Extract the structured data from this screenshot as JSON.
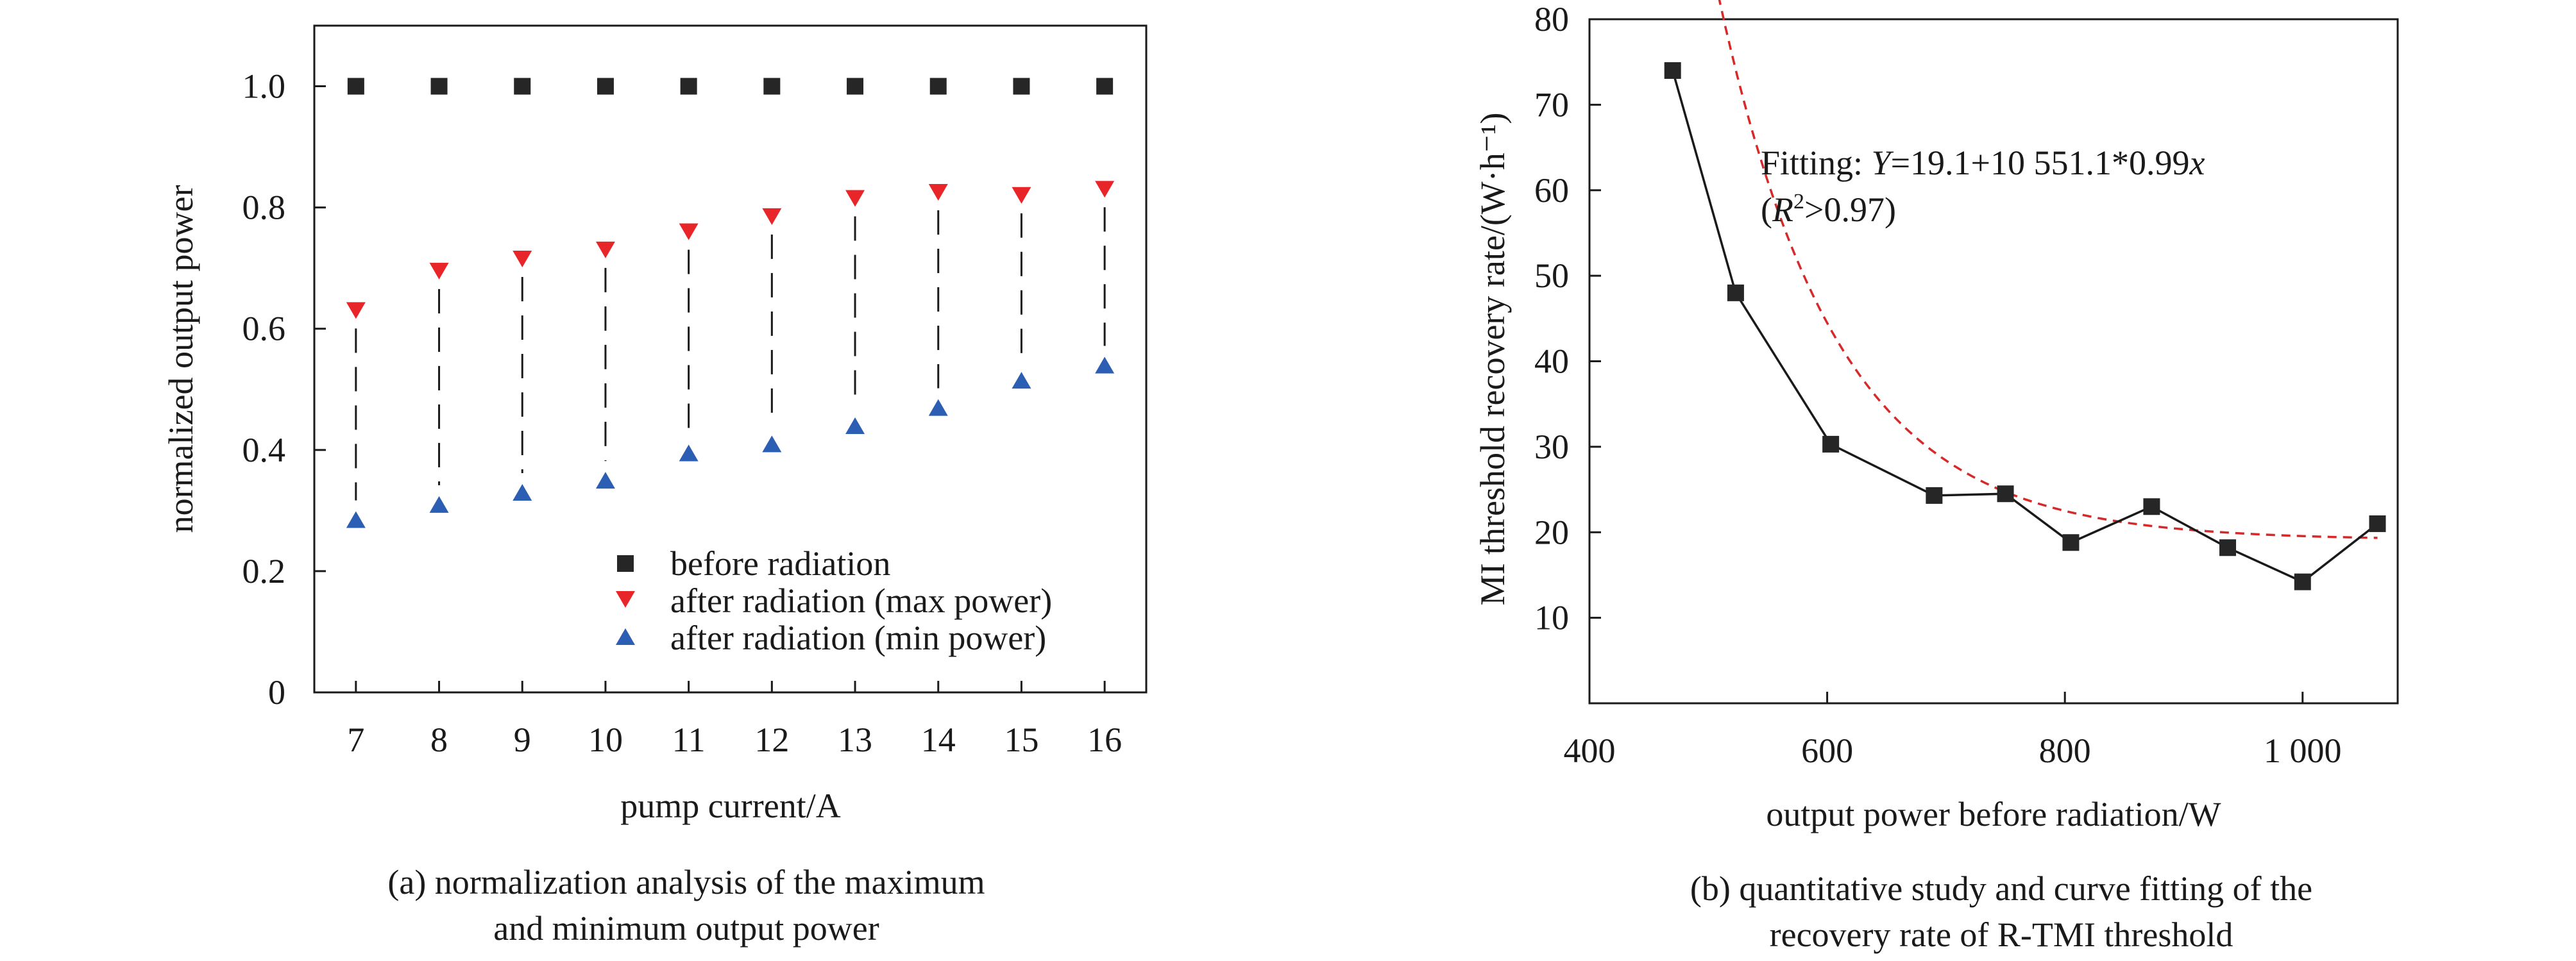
{
  "chart_data": [
    {
      "type": "scatter",
      "panel": "a",
      "xlabel": "pump current/A",
      "ylabel": "normalized output power",
      "xlim": [
        6.5,
        16.5
      ],
      "ylim": [
        0,
        1.1
      ],
      "xticks": [
        "7",
        "8",
        "9",
        "10",
        "11",
        "12",
        "13",
        "14",
        "15",
        "16"
      ],
      "yticks": [
        "0",
        "0.2",
        "0.4",
        "0.6",
        "0.8",
        "1.0"
      ],
      "grid": false,
      "legend_position": "bottom-right",
      "x": [
        7,
        8,
        9,
        10,
        11,
        12,
        13,
        14,
        15,
        16
      ],
      "series": [
        {
          "name": "before radiation",
          "marker": "square",
          "color": "#262626",
          "values": [
            1.0,
            1.0,
            1.0,
            1.0,
            1.0,
            1.0,
            1.0,
            1.0,
            1.0,
            1.0
          ]
        },
        {
          "name": "after radiation (max power)",
          "marker": "triangle-down",
          "color": "#e8262a",
          "values": [
            0.63,
            0.695,
            0.715,
            0.73,
            0.76,
            0.785,
            0.815,
            0.825,
            0.82,
            0.83
          ]
        },
        {
          "name": "after radiation (min power)",
          "marker": "triangle-up",
          "color": "#2c5fb4",
          "values": [
            0.285,
            0.31,
            0.33,
            0.35,
            0.395,
            0.41,
            0.44,
            0.47,
            0.515,
            0.54
          ]
        }
      ],
      "dashed_connectors": true
    },
    {
      "type": "line",
      "panel": "b",
      "xlabel": "output power before radiation/W",
      "ylabel": "MI threshold recovery rate/(W·h⁻¹)",
      "xlim": [
        400,
        1080
      ],
      "ylim": [
        0,
        80
      ],
      "xticks": [
        "400",
        "600",
        "800",
        "1 000"
      ],
      "yticks": [
        "10",
        "20",
        "30",
        "40",
        "50",
        "60",
        "70",
        "80"
      ],
      "grid": false,
      "series": [
        {
          "name": "",
          "marker": "square",
          "color": "#1a1a1a",
          "x": [
            470,
            523,
            603,
            690,
            750,
            805,
            873,
            937,
            1000,
            1063
          ],
          "values": [
            74,
            48,
            30.3,
            24.3,
            24.5,
            18.8,
            23,
            18.2,
            14.2,
            21
          ]
        }
      ],
      "fit": {
        "color": "#d62a2a",
        "a": 19.1,
        "b": 10551.1,
        "c": 0.99
      },
      "annotation": {
        "prefix": "Fitting: ",
        "var": "Y",
        "formula": "=19.1+10 551.1*0.99",
        "exp": "x",
        "r2_open": "(",
        "r2_var": "R",
        "r2_sup": "2",
        "r2_close": ">0.97)"
      }
    }
  ],
  "captions": {
    "a": [
      "(a) normalization analysis of the maximum",
      "and minimum output power"
    ],
    "b": [
      "(b) quantitative study and curve fitting of the",
      "recovery rate of R-TMI threshold"
    ]
  }
}
